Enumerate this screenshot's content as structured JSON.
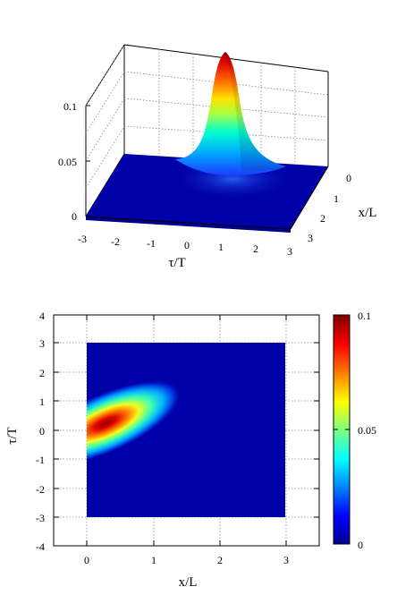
{
  "chart_data": [
    {
      "type": "surface",
      "xlabel": "τ/T",
      "ylabel": "x/L",
      "z_ticks": [
        "0",
        "0.05",
        "0.1"
      ],
      "x_ticks": [
        "-3",
        "-2",
        "-1",
        "0",
        "1",
        "2",
        "3"
      ],
      "y_ticks": [
        "0",
        "1",
        "2",
        "3"
      ],
      "xlim": [
        -3,
        3
      ],
      "ylim": [
        0,
        3
      ],
      "zlim": [
        0,
        0.1
      ],
      "grid": true,
      "peak": {
        "tau": 0.1,
        "x": 0.2,
        "z": 0.1
      },
      "colormap": "jet"
    },
    {
      "type": "heatmap",
      "xlabel": "x/L",
      "ylabel": "τ/T",
      "x_ticks": [
        "0",
        "1",
        "2",
        "3"
      ],
      "y_ticks": [
        "-4",
        "-3",
        "-2",
        "-1",
        "0",
        "1",
        "2",
        "3",
        "4"
      ],
      "xlim": [
        -0.5,
        3.5
      ],
      "ylim": [
        -4,
        4
      ],
      "data_extent": {
        "x": [
          0,
          3
        ],
        "y": [
          -3,
          3
        ]
      },
      "colorbar": {
        "ticks": [
          "0",
          "0.05",
          "0.1"
        ],
        "range": [
          0,
          0.1
        ]
      },
      "grid": true,
      "peak": {
        "x": 0.2,
        "y": 0.1,
        "value": 0.1
      },
      "colormap": "jet"
    }
  ],
  "colors": {
    "background": "#000080",
    "mid": "#00c0ff",
    "high": "#ffd000",
    "peak": "#800000"
  }
}
